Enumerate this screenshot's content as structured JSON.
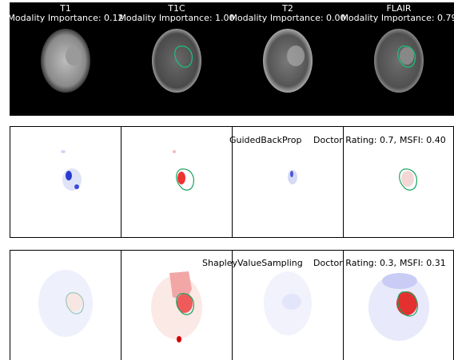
{
  "modalities": [
    {
      "name": "T1",
      "importance": "Modality Importance: 0.12"
    },
    {
      "name": "T1C",
      "importance": "Modality Importance: 1.00"
    },
    {
      "name": "T2",
      "importance": "Modality Importance: 0.00"
    },
    {
      "name": "FLAIR",
      "importance": "Modality Importance: 0.79"
    }
  ],
  "methods": [
    {
      "name": "GuidedBackProp",
      "rating": "Doctor Rating: 0.7,",
      "msfi": "MSFI: 0.40"
    },
    {
      "name": "ShapleyValueSampling",
      "rating": "Doctor Rating: 0.3,",
      "msfi": "MSFI: 0.31"
    }
  ]
}
